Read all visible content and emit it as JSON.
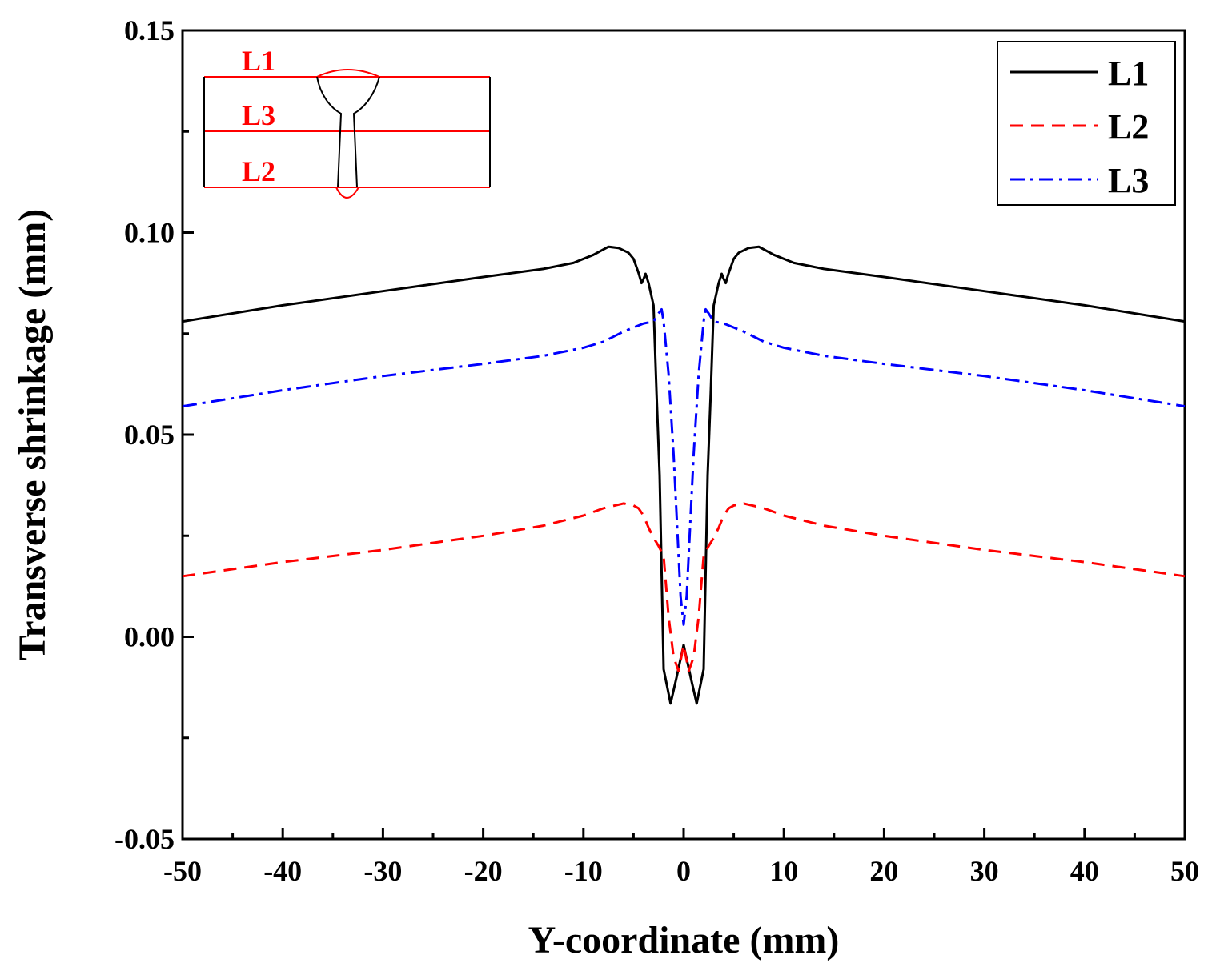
{
  "chart_data": {
    "type": "line",
    "title": "",
    "xlabel": "Y-coordinate (mm)",
    "ylabel": "Transverse shrinkage (mm)",
    "xlim": [
      -50,
      50
    ],
    "ylim": [
      -0.05,
      0.15
    ],
    "xticks": [
      -50,
      -40,
      -30,
      -20,
      -10,
      0,
      10,
      20,
      30,
      40,
      50
    ],
    "xtick_labels": [
      "-50",
      "-40",
      "-30",
      "-20",
      "-10",
      "0",
      "10",
      "20",
      "30",
      "40",
      "50"
    ],
    "yticks": [
      -0.05,
      0,
      0.05,
      0.1,
      0.15
    ],
    "ytick_labels": [
      "-0.05",
      "0.00",
      "0.05",
      "0.10",
      "0.15"
    ],
    "grid": false,
    "legend_position": "top-right",
    "series": [
      {
        "name": "L1",
        "color": "#000000",
        "style": "solid",
        "x": [
          -50,
          -40,
          -30,
          -20,
          -14,
          -11,
          -9,
          -7.5,
          -6.5,
          -5.5,
          -5,
          -4.5,
          -4.2,
          -4,
          -3.8,
          -3.5,
          -3,
          -2.7,
          -2.4,
          -2,
          -1.3,
          -0.7,
          0,
          0.7,
          1.3,
          2,
          2.4,
          2.7,
          3,
          3.5,
          3.8,
          4,
          4.2,
          4.5,
          5,
          5.5,
          6.5,
          7.5,
          9,
          11,
          14,
          20,
          30,
          40,
          50
        ],
        "y": [
          0.078,
          0.082,
          0.0855,
          0.089,
          0.091,
          0.0925,
          0.0945,
          0.0965,
          0.0962,
          0.095,
          0.0935,
          0.09,
          0.0875,
          0.0885,
          0.0898,
          0.0875,
          0.082,
          0.06,
          0.04,
          -0.008,
          -0.0165,
          -0.01,
          -0.002,
          -0.01,
          -0.0165,
          -0.008,
          0.04,
          0.06,
          0.082,
          0.0875,
          0.0898,
          0.0885,
          0.0875,
          0.09,
          0.0935,
          0.095,
          0.0962,
          0.0965,
          0.0945,
          0.0925,
          0.091,
          0.089,
          0.0855,
          0.082,
          0.078
        ]
      },
      {
        "name": "L2",
        "color": "#ff0000",
        "style": "dashed",
        "x": [
          -50,
          -40,
          -30,
          -20,
          -14,
          -10,
          -8,
          -6,
          -5,
          -4.5,
          -4,
          -3.5,
          -3,
          -2.5,
          -2,
          -1.5,
          -1,
          -0.5,
          0,
          0.5,
          1,
          1.5,
          2,
          2.5,
          3,
          3.5,
          4,
          4.5,
          5,
          6,
          8,
          10,
          14,
          20,
          30,
          40,
          50
        ],
        "y": [
          0.015,
          0.0185,
          0.0215,
          0.025,
          0.0275,
          0.03,
          0.0318,
          0.033,
          0.0325,
          0.0318,
          0.03,
          0.027,
          0.0245,
          0.0225,
          0.02,
          0.005,
          -0.005,
          -0.0085,
          -0.002,
          -0.0085,
          -0.005,
          0.005,
          0.02,
          0.0225,
          0.0245,
          0.027,
          0.03,
          0.0318,
          0.0325,
          0.033,
          0.0318,
          0.03,
          0.0275,
          0.025,
          0.0215,
          0.0185,
          0.015
        ]
      },
      {
        "name": "L3",
        "color": "#0000ff",
        "style": "dashdot",
        "x": [
          -50,
          -40,
          -30,
          -20,
          -14,
          -10,
          -8,
          -6,
          -4,
          -3,
          -2.5,
          -2.2,
          -2,
          -1.5,
          -1,
          -0.6,
          -0.3,
          0,
          0.3,
          0.6,
          1,
          1.5,
          2,
          2.2,
          2.5,
          3,
          4,
          6,
          8,
          10,
          14,
          20,
          30,
          40,
          50
        ],
        "y": [
          0.057,
          0.061,
          0.0645,
          0.0675,
          0.0695,
          0.0715,
          0.073,
          0.0755,
          0.0775,
          0.078,
          0.08,
          0.081,
          0.078,
          0.065,
          0.045,
          0.025,
          0.01,
          0.003,
          0.01,
          0.025,
          0.045,
          0.065,
          0.078,
          0.081,
          0.08,
          0.078,
          0.0775,
          0.0755,
          0.073,
          0.0715,
          0.0695,
          0.0675,
          0.0645,
          0.061,
          0.057
        ]
      }
    ],
    "inset": {
      "labels": [
        "L1",
        "L3",
        "L2"
      ],
      "line_color": "#ff0000",
      "outline_color": "#000000"
    }
  }
}
